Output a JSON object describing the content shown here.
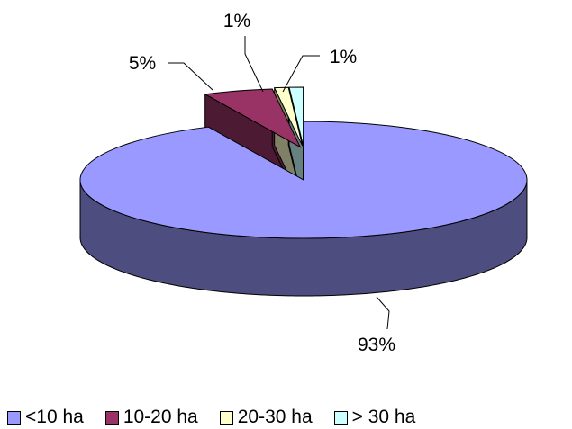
{
  "chart_data": {
    "type": "pie",
    "style": "3d-exploded",
    "categories": [
      "<10 ha",
      "10-20 ha",
      "20-30 ha",
      "> 30 ha"
    ],
    "values": [
      93,
      5,
      1,
      1
    ],
    "data_labels": [
      "93%",
      "5%",
      "1%",
      "1%"
    ],
    "colors": [
      "#9999ff",
      "#993366",
      "#ffffcc",
      "#ccffff"
    ],
    "side_colors": [
      "#4d4d80",
      "#4d1a33",
      "#808066",
      "#668080"
    ],
    "legend_position": "bottom",
    "title": ""
  }
}
